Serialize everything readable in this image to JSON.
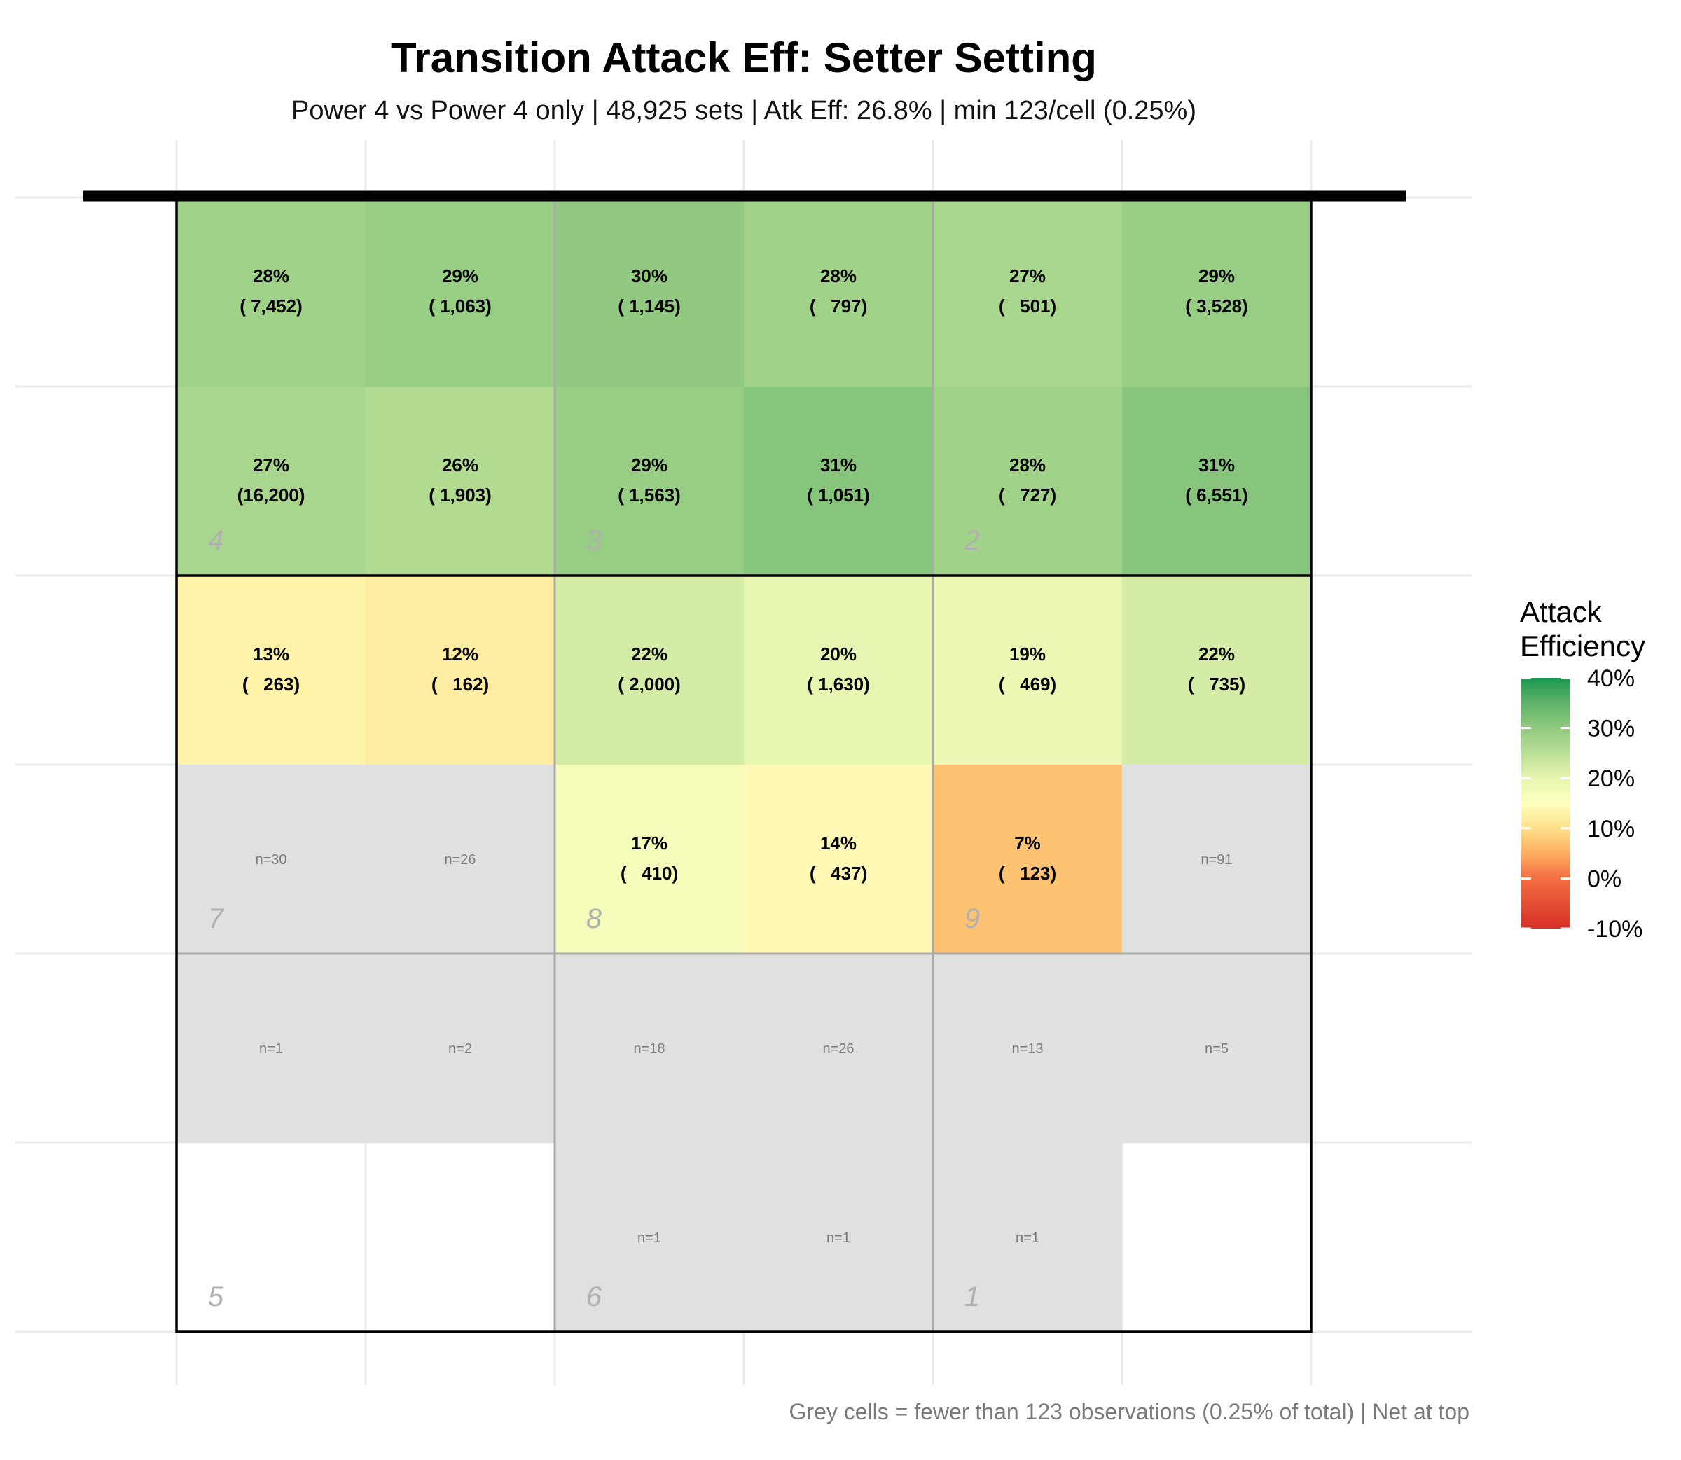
{
  "chart_data": {
    "type": "heatmap",
    "title": "Transition Attack Eff: Setter Setting",
    "subtitle": "Power 4 vs Power 4 only | 48,925 sets | Atk Eff: 26.8% | min 123/cell (0.25%)",
    "caption": "Grey cells = fewer than 123 observations (0.25% of total) | Net at top",
    "orientation": "net at top",
    "columns": 6,
    "rows": 6,
    "min_count": 123,
    "cells": [
      [
        {
          "eff": 28,
          "label": "28%",
          "count": "( 7,452)"
        },
        {
          "eff": 29,
          "label": "29%",
          "count": "( 1,063)"
        },
        {
          "eff": 30,
          "label": "30%",
          "count": "( 1,145)"
        },
        {
          "eff": 28,
          "label": "28%",
          "count": "(   797)"
        },
        {
          "eff": 27,
          "label": "27%",
          "count": "(   501)"
        },
        {
          "eff": 29,
          "label": "29%",
          "count": "( 3,528)"
        }
      ],
      [
        {
          "eff": 27,
          "label": "27%",
          "count": "(16,200)"
        },
        {
          "eff": 26,
          "label": "26%",
          "count": "( 1,903)"
        },
        {
          "eff": 29,
          "label": "29%",
          "count": "( 1,563)"
        },
        {
          "eff": 31,
          "label": "31%",
          "count": "( 1,051)"
        },
        {
          "eff": 28,
          "label": "28%",
          "count": "(   727)"
        },
        {
          "eff": 31,
          "label": "31%",
          "count": "( 6,551)"
        }
      ],
      [
        {
          "eff": 13,
          "label": "13%",
          "count": "(   263)"
        },
        {
          "eff": 12,
          "label": "12%",
          "count": "(   162)"
        },
        {
          "eff": 22,
          "label": "22%",
          "count": "( 2,000)"
        },
        {
          "eff": 20,
          "label": "20%",
          "count": "( 1,630)"
        },
        {
          "eff": 19,
          "label": "19%",
          "count": "(   469)"
        },
        {
          "eff": 22,
          "label": "22%",
          "count": "(   735)"
        }
      ],
      [
        {
          "grey": true,
          "n": "n=30"
        },
        {
          "grey": true,
          "n": "n=26"
        },
        {
          "eff": 17,
          "label": "17%",
          "count": "(   410)"
        },
        {
          "eff": 14,
          "label": "14%",
          "count": "(   437)"
        },
        {
          "eff": 7,
          "label": "7%",
          "count": "(   123)"
        },
        {
          "grey": true,
          "n": "n=91"
        }
      ],
      [
        {
          "grey": true,
          "n": "n=1"
        },
        {
          "grey": true,
          "n": "n=2"
        },
        {
          "grey": true,
          "n": "n=18"
        },
        {
          "grey": true,
          "n": "n=26"
        },
        {
          "grey": true,
          "n": "n=13"
        },
        {
          "grey": true,
          "n": "n=5"
        }
      ],
      [
        {
          "empty": true
        },
        {
          "empty": true
        },
        {
          "grey": true,
          "n": "n=1"
        },
        {
          "grey": true,
          "n": "n=1"
        },
        {
          "grey": true,
          "n": "n=1"
        },
        {
          "empty": true
        }
      ]
    ],
    "zones": [
      {
        "label": "4",
        "col": 0,
        "row": 1
      },
      {
        "label": "3",
        "col": 2,
        "row": 1
      },
      {
        "label": "2",
        "col": 4,
        "row": 1
      },
      {
        "label": "7",
        "col": 0,
        "row": 3
      },
      {
        "label": "8",
        "col": 2,
        "row": 3
      },
      {
        "label": "9",
        "col": 4,
        "row": 3
      },
      {
        "label": "5",
        "col": 0,
        "row": 5
      },
      {
        "label": "6",
        "col": 2,
        "row": 5
      },
      {
        "label": "1",
        "col": 4,
        "row": 5
      }
    ],
    "legend": {
      "title_line1": "Attack",
      "title_line2": "Efficiency",
      "range": [
        -10,
        40
      ],
      "ticks": [
        {
          "value": 40,
          "label": "40%"
        },
        {
          "value": 30,
          "label": "30%"
        },
        {
          "value": 20,
          "label": "20%"
        },
        {
          "value": 10,
          "label": "10%"
        },
        {
          "value": 0,
          "label": "0%"
        },
        {
          "value": -10,
          "label": "-10%"
        }
      ]
    },
    "colors": {
      "grey_cell": "#e0e0e0",
      "net": "#000000",
      "gridline": "#ebebeb",
      "zone_line": "#aaaaaa",
      "border": "#000000",
      "scale": [
        {
          "value": -10,
          "color": "#d73027"
        },
        {
          "value": 0,
          "color": "#f46d43"
        },
        {
          "value": 5,
          "color": "#fdae61"
        },
        {
          "value": 10,
          "color": "#fee08b"
        },
        {
          "value": 15,
          "color": "#ffffbf"
        },
        {
          "value": 20,
          "color": "#e6f5b0"
        },
        {
          "value": 25,
          "color": "#b9df96"
        },
        {
          "value": 30,
          "color": "#90c97f"
        },
        {
          "value": 35,
          "color": "#5fb46a"
        },
        {
          "value": 40,
          "color": "#1a9850"
        }
      ]
    }
  }
}
